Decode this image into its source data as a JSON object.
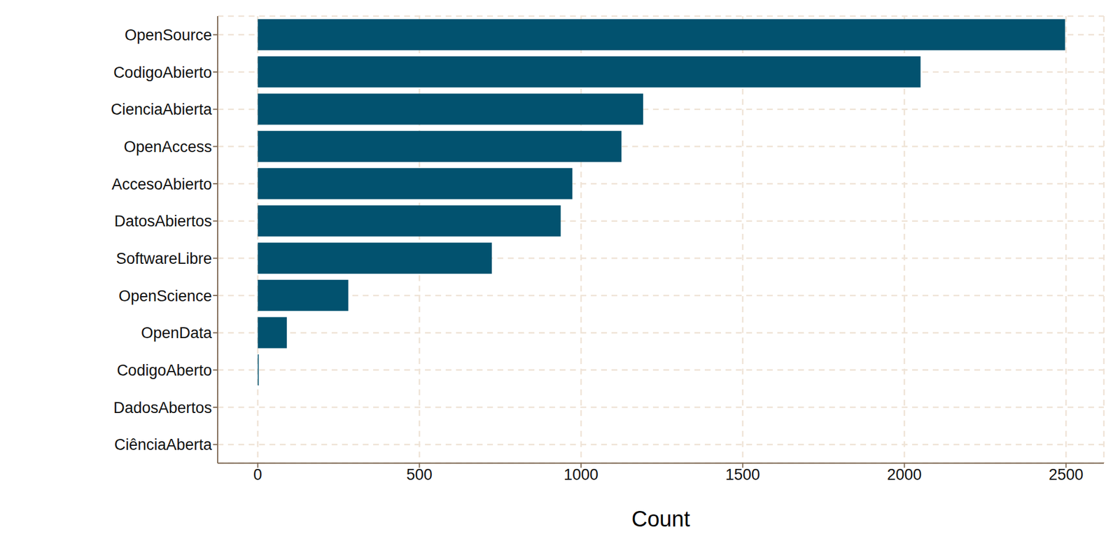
{
  "chart_data": {
    "type": "bar",
    "orientation": "horizontal",
    "xlabel": "Count",
    "categories": [
      "OpenSource",
      "CodigoAbierto",
      "CienciaAbierta",
      "OpenAccess",
      "AccesoAbierto",
      "DatosAbiertos",
      "SoftwareLibre",
      "OpenScience",
      "OpenData",
      "CodigoAberto",
      "DadosAbertos",
      "CiênciaAberta"
    ],
    "values": [
      2497,
      2050,
      1192,
      1125,
      973,
      937,
      724,
      280,
      90,
      3,
      0,
      0
    ],
    "color": "#02526f",
    "xlim": [
      -124,
      2617
    ],
    "xticks": [
      0,
      500,
      1000,
      1500,
      2000,
      2500
    ],
    "grid": true
  }
}
